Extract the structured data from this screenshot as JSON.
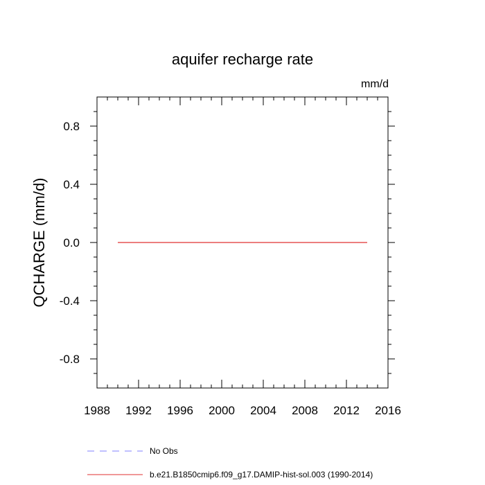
{
  "chart_data": {
    "type": "line",
    "title": "aquifer recharge rate",
    "units": "mm/d",
    "ylabel": "QCHARGE  (mm/d)",
    "xlabel": "",
    "xlim": [
      1988,
      2016
    ],
    "ylim": [
      -1.0,
      1.0
    ],
    "x_ticks": [
      1988,
      1992,
      1996,
      2000,
      2004,
      2008,
      2012,
      2016
    ],
    "x_tick_labels": [
      "1988",
      "1992",
      "1996",
      "2000",
      "2004",
      "2008",
      "2012",
      "2016"
    ],
    "y_ticks": [
      -0.8,
      -0.4,
      0.0,
      0.4,
      0.8
    ],
    "y_tick_labels": [
      "-0.8",
      "-0.4",
      "0.0",
      "0.4",
      "0.8"
    ],
    "grid": false,
    "legend_position": "bottom",
    "series": [
      {
        "name": "No Obs",
        "color": "#8080ff",
        "style": "dashed",
        "x": [],
        "y": []
      },
      {
        "name": "b.e21.B1850cmip6.f09_g17.DAMIP-hist-sol.003 (1990-2014)",
        "color": "#e03030",
        "style": "solid",
        "x": [
          1990,
          1991,
          1992,
          1993,
          1994,
          1995,
          1996,
          1997,
          1998,
          1999,
          2000,
          2001,
          2002,
          2003,
          2004,
          2005,
          2006,
          2007,
          2008,
          2009,
          2010,
          2011,
          2012,
          2013,
          2014
        ],
        "y": [
          0,
          0,
          0,
          0,
          0,
          0,
          0,
          0,
          0,
          0,
          0,
          0,
          0,
          0,
          0,
          0,
          0,
          0,
          0,
          0,
          0,
          0,
          0,
          0,
          0
        ]
      }
    ]
  }
}
